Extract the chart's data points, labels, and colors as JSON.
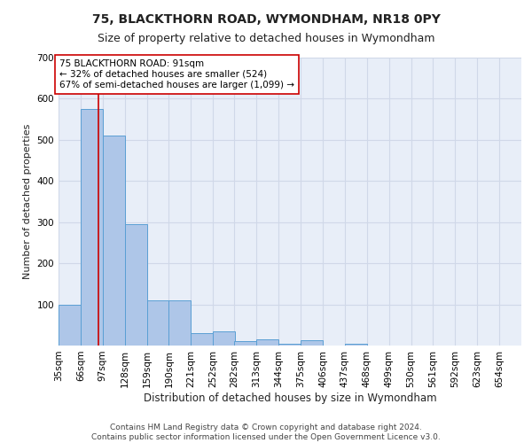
{
  "title1": "75, BLACKTHORN ROAD, WYMONDHAM, NR18 0PY",
  "title2": "Size of property relative to detached houses in Wymondham",
  "xlabel": "Distribution of detached houses by size in Wymondham",
  "ylabel": "Number of detached properties",
  "bin_labels": [
    "35sqm",
    "66sqm",
    "97sqm",
    "128sqm",
    "159sqm",
    "190sqm",
    "221sqm",
    "252sqm",
    "282sqm",
    "313sqm",
    "344sqm",
    "375sqm",
    "406sqm",
    "437sqm",
    "468sqm",
    "499sqm",
    "530sqm",
    "561sqm",
    "592sqm",
    "623sqm",
    "654sqm"
  ],
  "bin_edges": [
    35,
    66,
    97,
    128,
    159,
    190,
    221,
    252,
    282,
    313,
    344,
    375,
    406,
    437,
    468,
    499,
    530,
    561,
    592,
    623,
    654
  ],
  "bar_heights": [
    100,
    575,
    510,
    295,
    110,
    110,
    30,
    35,
    10,
    15,
    5,
    12,
    0,
    5,
    0,
    0,
    0,
    0,
    0,
    0
  ],
  "bar_color": "#aec6e8",
  "bar_edge_color": "#5a9fd4",
  "property_value": 91,
  "red_line_color": "#cc0000",
  "annotation_line1": "75 BLACKTHORN ROAD: 91sqm",
  "annotation_line2": "← 32% of detached houses are smaller (524)",
  "annotation_line3": "67% of semi-detached houses are larger (1,099) →",
  "annotation_box_edgecolor": "#cc0000",
  "annotation_box_facecolor": "#ffffff",
  "ylim": [
    0,
    700
  ],
  "yticks": [
    0,
    100,
    200,
    300,
    400,
    500,
    600,
    700
  ],
  "grid_color": "#d0d8e8",
  "background_color": "#e8eef8",
  "footer_text": "Contains HM Land Registry data © Crown copyright and database right 2024.\nContains public sector information licensed under the Open Government Licence v3.0.",
  "title1_fontsize": 10,
  "title2_fontsize": 9,
  "xlabel_fontsize": 8.5,
  "ylabel_fontsize": 8,
  "tick_fontsize": 7.5,
  "annotation_fontsize": 7.5,
  "footer_fontsize": 6.5
}
